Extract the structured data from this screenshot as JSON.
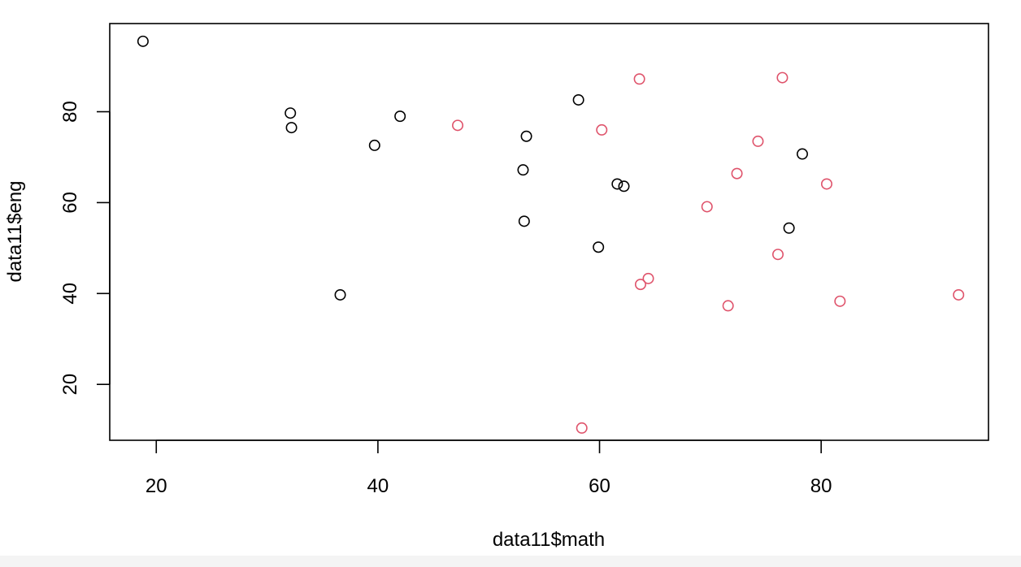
{
  "chart_data": {
    "type": "scatter",
    "xlabel": "data11$math",
    "ylabel": "data11$eng",
    "xlim": [
      15.8,
      95.1
    ],
    "ylim": [
      7.7,
      99.4
    ],
    "x_ticks": [
      20,
      40,
      60,
      80
    ],
    "y_ticks": [
      20,
      40,
      60,
      80
    ],
    "grid": false,
    "legend": "none",
    "marker": "open-circle",
    "series": [
      {
        "color": "#000000",
        "points": [
          [
            18.8,
            95.5
          ],
          [
            32.1,
            79.7
          ],
          [
            32.2,
            76.5
          ],
          [
            36.6,
            39.7
          ],
          [
            39.7,
            72.6
          ],
          [
            42.0,
            79.0
          ],
          [
            53.1,
            67.2
          ],
          [
            53.2,
            55.9
          ],
          [
            53.4,
            74.6
          ],
          [
            58.1,
            82.6
          ],
          [
            59.9,
            50.2
          ],
          [
            61.6,
            64.1
          ],
          [
            62.2,
            63.6
          ],
          [
            77.1,
            54.4
          ],
          [
            78.3,
            70.7
          ]
        ]
      },
      {
        "color": "#DF536B",
        "points": [
          [
            47.2,
            77.0
          ],
          [
            58.4,
            10.4
          ],
          [
            60.2,
            76.0
          ],
          [
            63.6,
            87.2
          ],
          [
            63.7,
            42.0
          ],
          [
            64.4,
            43.3
          ],
          [
            69.7,
            59.1
          ],
          [
            71.6,
            37.3
          ],
          [
            72.4,
            66.4
          ],
          [
            74.3,
            73.5
          ],
          [
            76.1,
            48.6
          ],
          [
            76.5,
            87.5
          ],
          [
            80.5,
            64.1
          ],
          [
            81.7,
            38.3
          ],
          [
            92.4,
            39.7
          ]
        ]
      }
    ]
  }
}
